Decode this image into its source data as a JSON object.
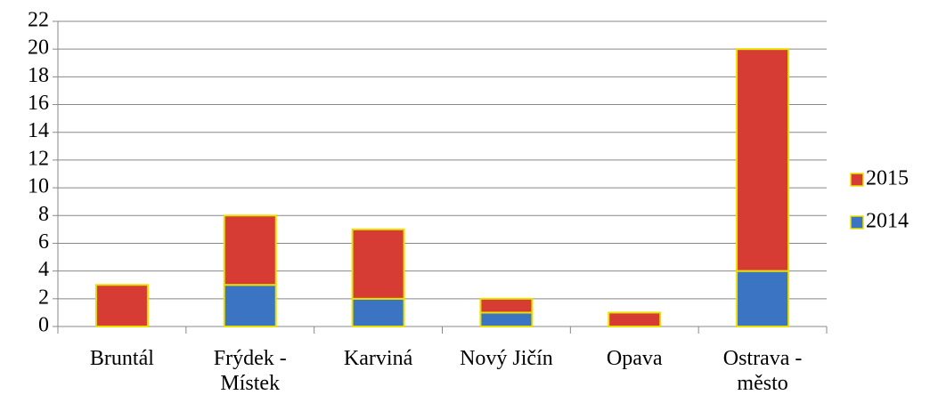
{
  "chart_data": {
    "type": "stacked_bar",
    "categories": [
      "Bruntál",
      "Frýdek - Místek",
      "Karviná",
      "Nový Jičín",
      "Opava",
      "Ostrava - město"
    ],
    "series": [
      {
        "name": "2014",
        "color": "#3b74c2",
        "values": [
          0,
          3,
          2,
          1,
          0,
          4
        ]
      },
      {
        "name": "2015",
        "color": "#d63c34",
        "values": [
          3,
          5,
          5,
          1,
          1,
          16
        ]
      }
    ],
    "ylim": [
      0,
      22
    ],
    "yticks": [
      0,
      2,
      4,
      6,
      8,
      10,
      12,
      14,
      16,
      18,
      20,
      22
    ],
    "grid": true,
    "legend": "right"
  }
}
